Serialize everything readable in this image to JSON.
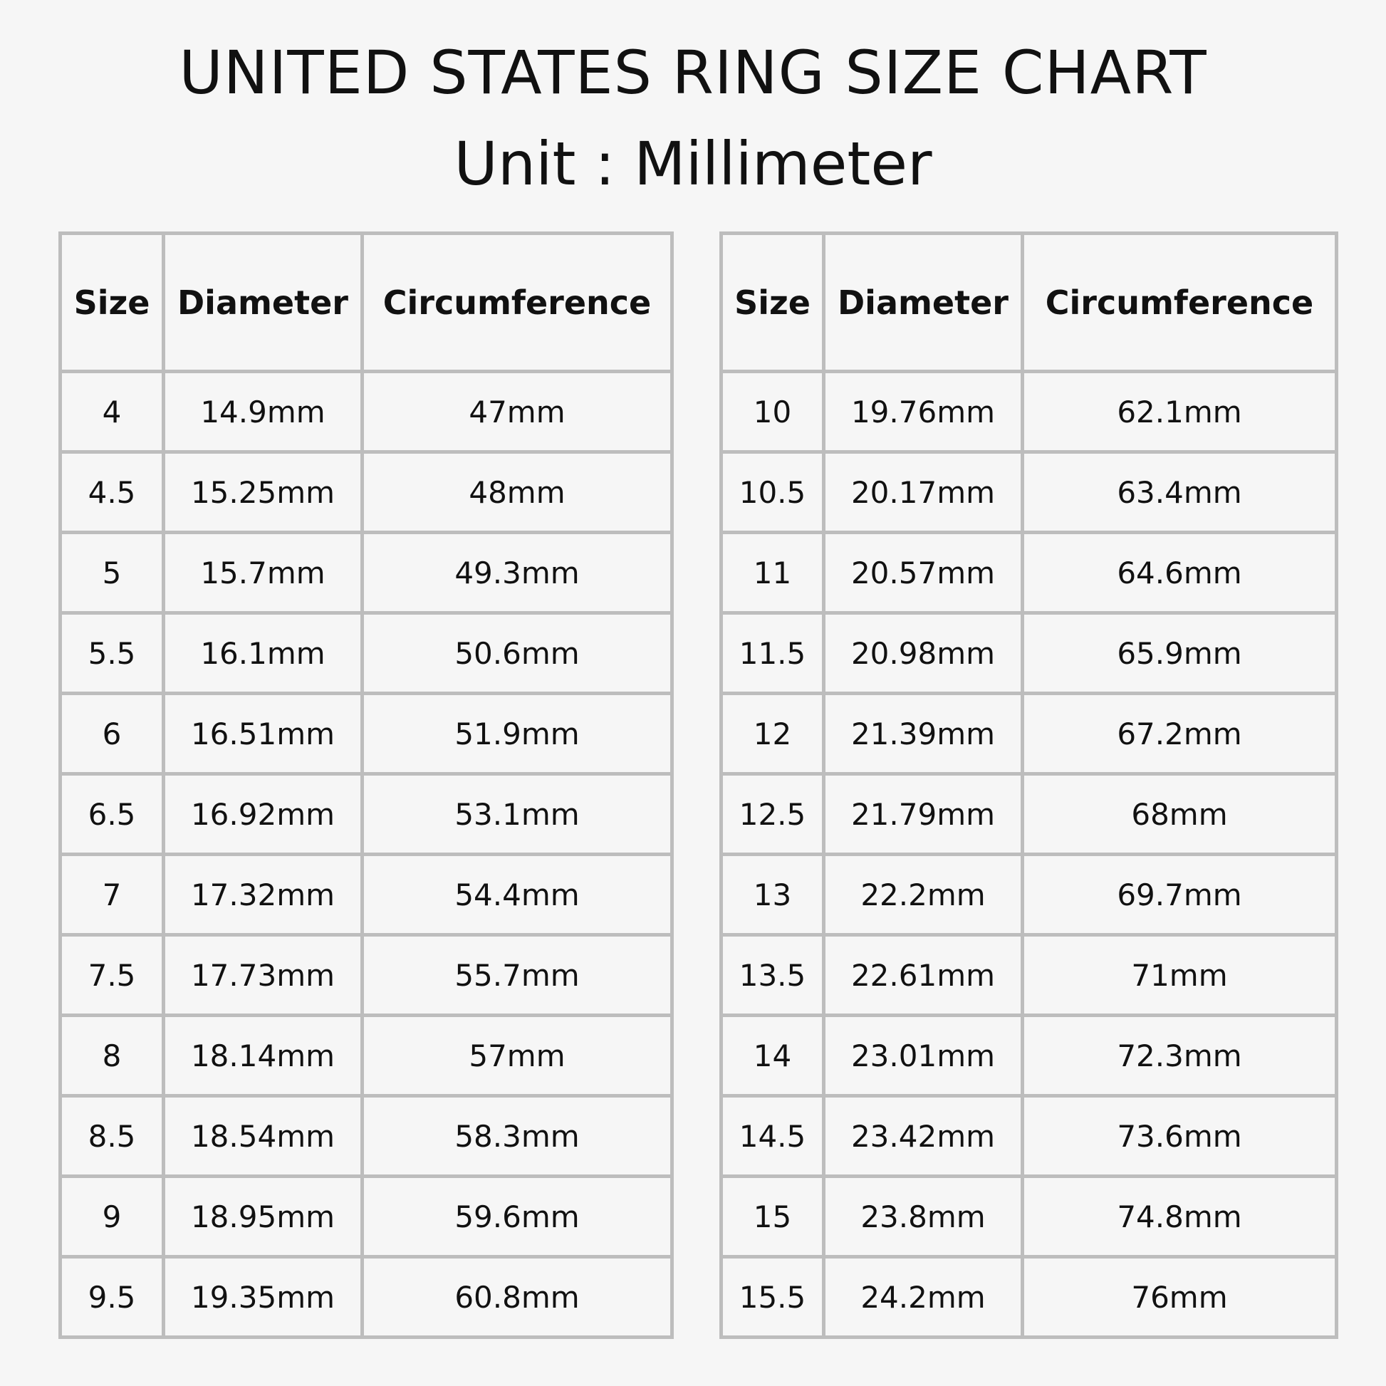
{
  "title": "UNITED STATES RING SIZE CHART",
  "subtitle": "Unit : Millimeter",
  "headers": [
    "Size",
    "Diameter",
    "Circumference"
  ],
  "tables": [
    {
      "rows": [
        [
          "4",
          "14.9mm",
          "47mm"
        ],
        [
          "4.5",
          "15.25mm",
          "48mm"
        ],
        [
          "5",
          "15.7mm",
          "49.3mm"
        ],
        [
          "5.5",
          "16.1mm",
          "50.6mm"
        ],
        [
          "6",
          "16.51mm",
          "51.9mm"
        ],
        [
          "6.5",
          "16.92mm",
          "53.1mm"
        ],
        [
          "7",
          "17.32mm",
          "54.4mm"
        ],
        [
          "7.5",
          "17.73mm",
          "55.7mm"
        ],
        [
          "8",
          "18.14mm",
          "57mm"
        ],
        [
          "8.5",
          "18.54mm",
          "58.3mm"
        ],
        [
          "9",
          "18.95mm",
          "59.6mm"
        ],
        [
          "9.5",
          "19.35mm",
          "60.8mm"
        ]
      ]
    },
    {
      "rows": [
        [
          "10",
          "19.76mm",
          "62.1mm"
        ],
        [
          "10.5",
          "20.17mm",
          "63.4mm"
        ],
        [
          "11",
          "20.57mm",
          "64.6mm"
        ],
        [
          "11.5",
          "20.98mm",
          "65.9mm"
        ],
        [
          "12",
          "21.39mm",
          "67.2mm"
        ],
        [
          "12.5",
          "21.79mm",
          "68mm"
        ],
        [
          "13",
          "22.2mm",
          "69.7mm"
        ],
        [
          "13.5",
          "22.61mm",
          "71mm"
        ],
        [
          "14",
          "23.01mm",
          "72.3mm"
        ],
        [
          "14.5",
          "23.42mm",
          "73.6mm"
        ],
        [
          "15",
          "23.8mm",
          "74.8mm"
        ],
        [
          "15.5",
          "24.2mm",
          "76mm"
        ]
      ]
    }
  ],
  "colors": {
    "background": "#f6f6f6",
    "border": "#bdbdbd",
    "text": "#111111"
  }
}
